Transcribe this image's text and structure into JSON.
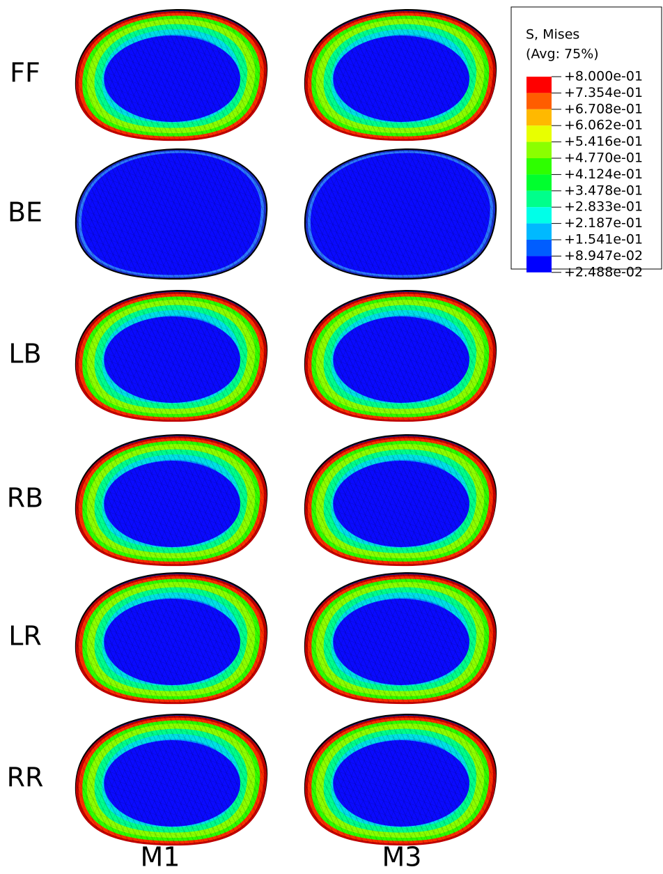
{
  "row_labels": [
    "FF",
    "BE",
    "LB",
    "RB",
    "LR",
    "RR"
  ],
  "column_labels": [
    "M1",
    "M3"
  ],
  "legend": {
    "title": "S, Mises",
    "subtitle": "(Avg: 75%)",
    "labels": [
      "+8.000e-01",
      "+7.354e-01",
      "+6.708e-01",
      "+6.062e-01",
      "+5.416e-01",
      "+4.770e-01",
      "+4.124e-01",
      "+3.478e-01",
      "+2.833e-01",
      "+2.187e-01",
      "+1.541e-01",
      "+8.947e-02",
      "+2.488e-02"
    ],
    "colors": [
      "#ff0000",
      "#ff5d00",
      "#ffb900",
      "#e8ff00",
      "#8bff00",
      "#2eff00",
      "#00ff2e",
      "#00ff8b",
      "#00ffe8",
      "#00b9ff",
      "#005dff",
      "#0000ff"
    ]
  }
}
